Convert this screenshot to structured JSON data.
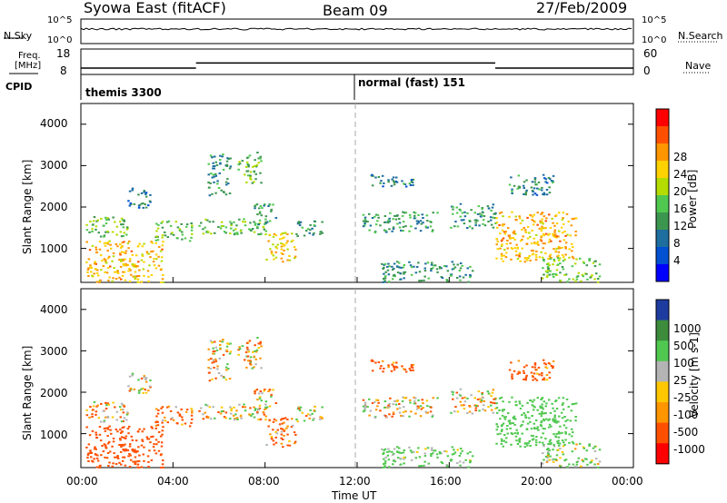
{
  "header": {
    "station": "Syowa East (fitACF)",
    "beam": "Beam 09",
    "date": "27/Feb/2009"
  },
  "top_panels": {
    "nsky_label": "N.Sky",
    "nsky_ticks": [
      "10^5",
      "10^0"
    ],
    "nsearch_label": "N.Search",
    "nsearch_ticks": [
      "10^5",
      "10^0"
    ],
    "freq_label_1": "Freq.",
    "freq_label_2": "[MHz]",
    "freq_ticks": [
      "18",
      "8"
    ],
    "nave_label": "Nave",
    "nave_ticks": [
      "60",
      "0"
    ],
    "cpid_label": "CPID",
    "cpid_modes": [
      "themis 3300",
      "normal (fast) 151"
    ]
  },
  "axes": {
    "ylabel": "Slant Range [km]",
    "yticks": [
      "4000",
      "3000",
      "2000",
      "1000"
    ],
    "xticks": [
      "00:00",
      "04:00",
      "08:00",
      "12:00",
      "16:00",
      "20:00",
      "00:00"
    ],
    "xlabel": "Time UT"
  },
  "power_colorbar": {
    "label": "Power [dB]",
    "ticks": [
      "28",
      "24",
      "20",
      "16",
      "12",
      "8",
      "4"
    ],
    "colors": [
      "#ff0000",
      "#ff5000",
      "#ff9600",
      "#ffd200",
      "#b4dc00",
      "#50c850",
      "#3c9650",
      "#1e6ea0",
      "#0050d2",
      "#0000ff"
    ]
  },
  "velocity_colorbar": {
    "label": "Velocity [m s-1]",
    "ticks": [
      "1000",
      "500",
      "100",
      "25",
      "-25",
      "-100",
      "-500",
      "-1000"
    ],
    "colors": [
      "#1e3ca0",
      "#3c8c3c",
      "#50c850",
      "#b4b4b4",
      "#ffc800",
      "#ff9600",
      "#ff5000",
      "#ff0000"
    ]
  },
  "chart_data": {
    "type": "heatmap",
    "x_unit": "UT hour",
    "xlim": [
      0,
      24
    ],
    "ylim": [
      180,
      4500
    ],
    "cpid_changes": [
      {
        "hour": 0,
        "mode": "themis 3300"
      },
      {
        "hour": 12,
        "mode": "normal (fast) 151"
      }
    ],
    "frequency_MHz": [
      {
        "start": 0,
        "end": 5,
        "value": 10.5
      },
      {
        "start": 5,
        "end": 18,
        "value": 12.5
      },
      {
        "start": 18,
        "end": 24,
        "value": 10.5
      }
    ],
    "scatter_regions": [
      {
        "t0": 0.2,
        "t1": 3.6,
        "r0": 200,
        "r1": 1200,
        "power": 24,
        "velocity": -300
      },
      {
        "t0": 0.2,
        "t1": 2.0,
        "r0": 1300,
        "r1": 1800,
        "power": 14,
        "velocity": -60
      },
      {
        "t0": 2.0,
        "t1": 3.0,
        "r0": 2000,
        "r1": 2500,
        "power": 6,
        "velocity": 30
      },
      {
        "t0": 3.2,
        "t1": 4.8,
        "r0": 1200,
        "r1": 1700,
        "power": 14,
        "velocity": -150
      },
      {
        "t0": 5.0,
        "t1": 8.0,
        "r0": 1350,
        "r1": 1750,
        "power": 14,
        "velocity": 0
      },
      {
        "t0": 5.5,
        "t1": 6.5,
        "r0": 2300,
        "r1": 3300,
        "power": 9,
        "velocity": 0
      },
      {
        "t0": 6.8,
        "t1": 7.8,
        "r0": 2600,
        "r1": 3350,
        "power": 14,
        "velocity": 0
      },
      {
        "t0": 7.5,
        "t1": 8.5,
        "r0": 1600,
        "r1": 2100,
        "power": 9,
        "velocity": 0
      },
      {
        "t0": 8.0,
        "t1": 9.3,
        "r0": 700,
        "r1": 1400,
        "power": 22,
        "velocity": -150
      },
      {
        "t0": 9.3,
        "t1": 10.5,
        "r0": 1300,
        "r1": 1700,
        "power": 10,
        "velocity": 0
      },
      {
        "t0": 12.2,
        "t1": 15.5,
        "r0": 1400,
        "r1": 1900,
        "power": 10,
        "velocity": 0
      },
      {
        "t0": 12.5,
        "t1": 14.5,
        "r0": 2500,
        "r1": 2800,
        "power": 8,
        "velocity": -200
      },
      {
        "t0": 13.0,
        "t1": 17.0,
        "r0": 200,
        "r1": 700,
        "power": 9,
        "velocity": 200
      },
      {
        "t0": 16.0,
        "t1": 18.0,
        "r0": 1500,
        "r1": 2100,
        "power": 10,
        "velocity": 0
      },
      {
        "t0": 18.0,
        "t1": 21.5,
        "r0": 700,
        "r1": 1900,
        "power": 24,
        "velocity": 300
      },
      {
        "t0": 18.5,
        "t1": 20.5,
        "r0": 2300,
        "r1": 2800,
        "power": 8,
        "velocity": -200
      },
      {
        "t0": 20.0,
        "t1": 22.5,
        "r0": 200,
        "r1": 800,
        "power": 15,
        "velocity": 150
      }
    ]
  }
}
